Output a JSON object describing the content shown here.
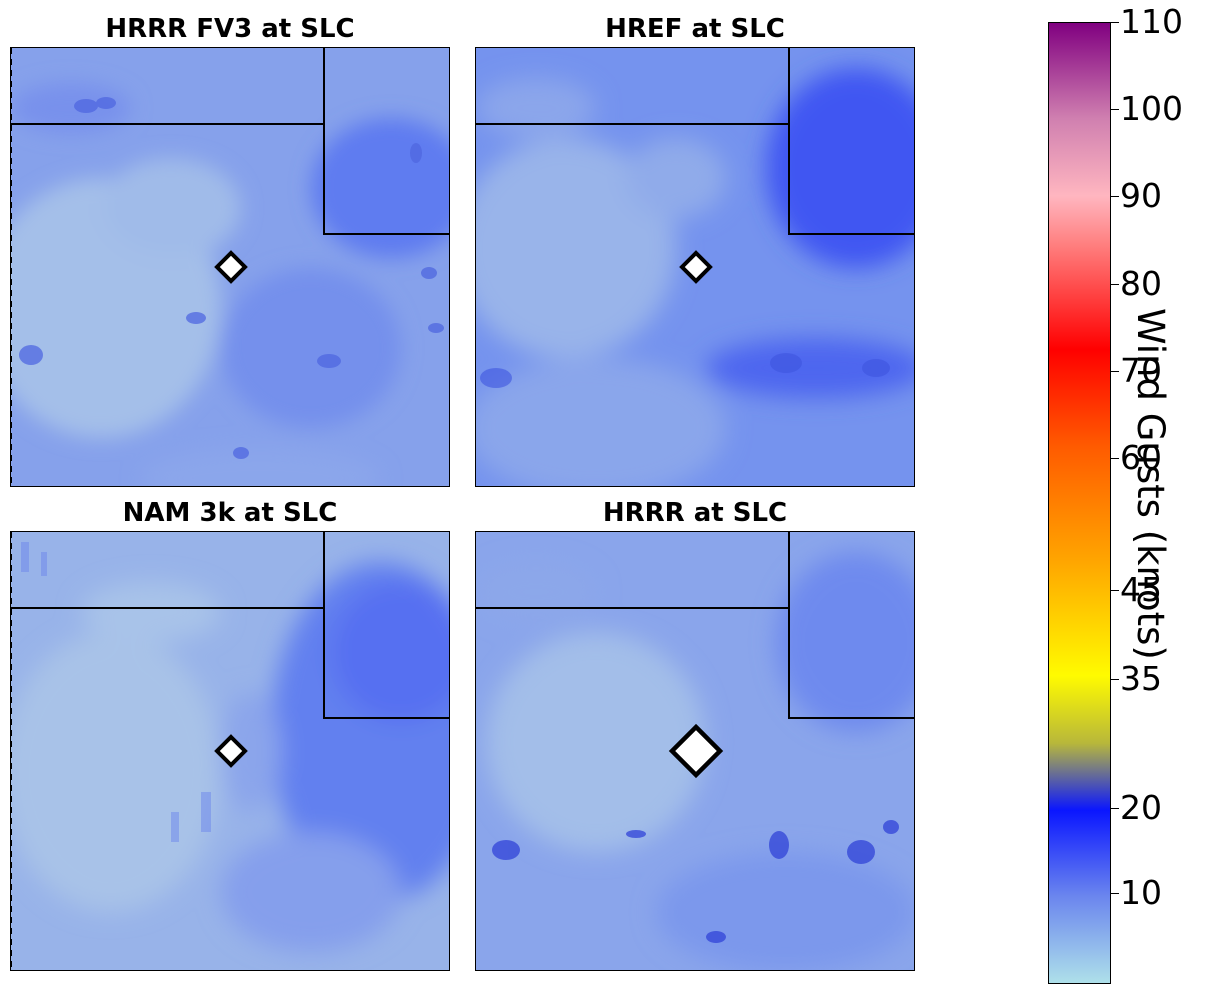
{
  "panels": [
    {
      "title": "HRRR FV3 at SLC",
      "tone": "#7f9bea"
    },
    {
      "title": "HREF at SLC",
      "tone": "#6f8ded"
    },
    {
      "title": "NAM 3k at SLC",
      "tone": "#8ea9ea"
    },
    {
      "title": "HRRR at SLC",
      "tone": "#7d99ea"
    }
  ],
  "colorbar": {
    "label": "Wind Gusts (knots)",
    "ticks": [
      "110",
      "100",
      "90",
      "80",
      "70",
      "60",
      "45",
      "35",
      "20",
      "10"
    ],
    "gradient": [
      "#aee0ea",
      "#6b86ee",
      "#0a16ff",
      "#b8b83a",
      "#fffb00",
      "#ffa500",
      "#ff5a00",
      "#ff0000",
      "#ff8080",
      "#ffb6c0",
      "#d080b0",
      "#800080"
    ]
  },
  "station_marker": "diamond"
}
